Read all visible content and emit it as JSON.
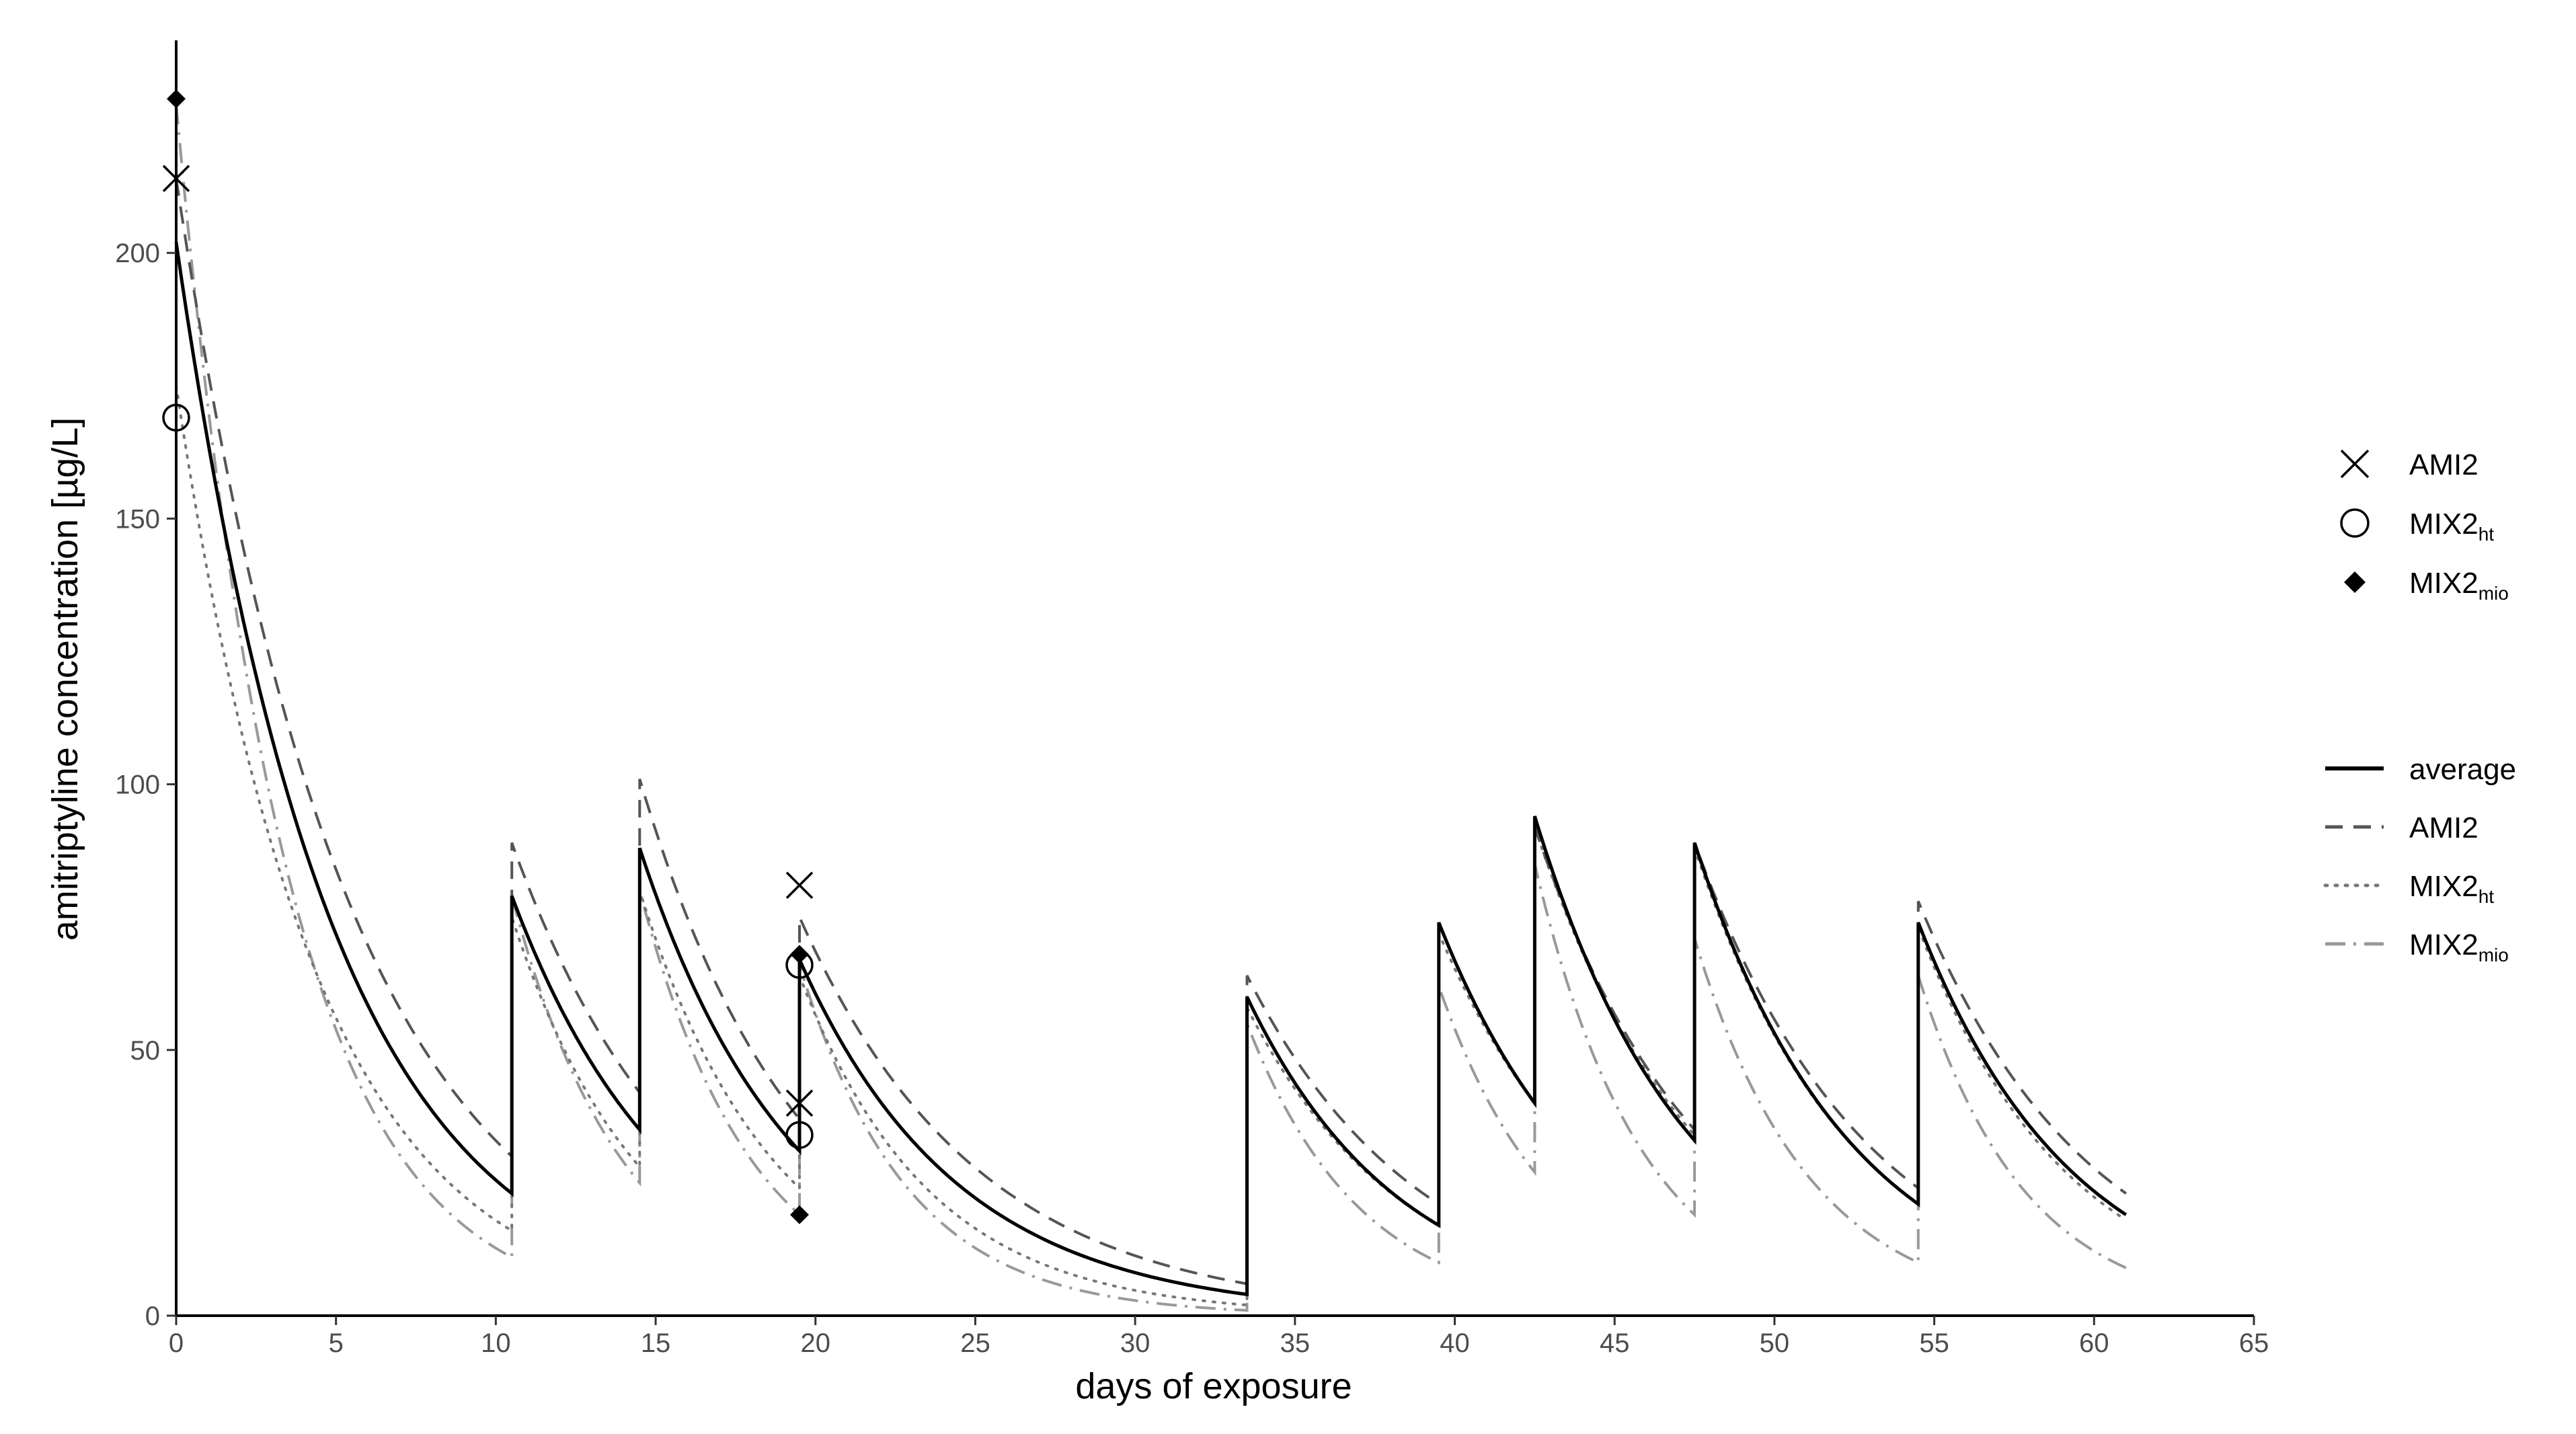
{
  "chart_data": {
    "type": "line",
    "title": "",
    "xlabel": "days of exposure",
    "ylabel": "amitriptyline concentration [µg/L]",
    "xlim": [
      0,
      65
    ],
    "ylim": [
      0,
      240
    ],
    "xticks": [
      0,
      5,
      10,
      15,
      20,
      25,
      30,
      35,
      40,
      45,
      50,
      55,
      60,
      65
    ],
    "yticks": [
      0,
      50,
      100,
      150,
      200
    ],
    "grid": false,
    "legend_position": "right",
    "dose_days": [
      0,
      10.5,
      14.5,
      19.5,
      33.5,
      39.5,
      42.5,
      47.5,
      54.5
    ],
    "end_day": 61,
    "series": [
      {
        "name": "average",
        "style": "solid",
        "color": "#000000",
        "peaks": [
          202,
          79,
          88,
          67,
          60,
          74,
          94,
          89,
          74
        ],
        "troughs": [
          23,
          35,
          31,
          4,
          17,
          40,
          33,
          21,
          19
        ]
      },
      {
        "name": "AMI2",
        "style": "dashed",
        "color": "#555555",
        "peaks": [
          214,
          89,
          101,
          75,
          64,
          74,
          92,
          89,
          78
        ],
        "troughs": [
          30,
          42,
          37,
          6,
          21,
          40,
          35,
          24,
          23
        ]
      },
      {
        "name": "MIX2",
        "subscript": "ht",
        "style": "dotted",
        "color": "#777777",
        "peaks": [
          175,
          75,
          80,
          64,
          58,
          72,
          92,
          88,
          73
        ],
        "troughs": [
          16,
          28,
          24,
          2,
          17,
          40,
          34,
          21,
          18
        ]
      },
      {
        "name": "MIX2",
        "subscript": "mio",
        "style": "dashdot",
        "color": "#999999",
        "peaks": [
          228,
          79,
          80,
          66,
          55,
          62,
          85,
          71,
          64
        ],
        "troughs": [
          11,
          25,
          19,
          1,
          10,
          27,
          19,
          10,
          9
        ]
      }
    ],
    "measured_points": [
      {
        "series": "AMI2",
        "marker": "cross",
        "points": [
          [
            0,
            214
          ],
          [
            19.5,
            40
          ],
          [
            19.5,
            81
          ]
        ]
      },
      {
        "series": "MIX2ht",
        "marker": "circle",
        "points": [
          [
            0,
            169
          ],
          [
            19.5,
            34
          ],
          [
            19.5,
            66
          ]
        ]
      },
      {
        "series": "MIX2mio",
        "marker": "diamond",
        "points": [
          [
            0,
            229
          ],
          [
            19.5,
            19
          ],
          [
            19.5,
            68
          ]
        ]
      }
    ],
    "legend_markers": [
      {
        "marker": "cross",
        "label": "AMI2",
        "subscript": ""
      },
      {
        "marker": "circle",
        "label": "MIX2",
        "subscript": "ht"
      },
      {
        "marker": "diamond",
        "label": "MIX2",
        "subscript": "mio"
      }
    ],
    "legend_lines": [
      {
        "style": "solid",
        "label": "average",
        "subscript": ""
      },
      {
        "style": "dashed",
        "label": "AMI2",
        "subscript": ""
      },
      {
        "style": "dotted",
        "label": "MIX2",
        "subscript": "ht"
      },
      {
        "style": "dashdot",
        "label": "MIX2",
        "subscript": "mio"
      }
    ]
  }
}
